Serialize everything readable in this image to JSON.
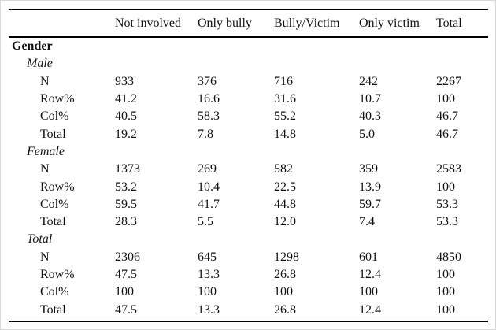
{
  "table": {
    "section_label": "Gender",
    "columns": {
      "c1": "Not involved",
      "c2": "Only bully",
      "c3": "Bully/Victim",
      "c4": "Only victim",
      "c5": "Total"
    },
    "groups": [
      {
        "label": "Male",
        "rows": [
          {
            "label": "N",
            "values": [
              "933",
              "376",
              "716",
              "242",
              "2267"
            ]
          },
          {
            "label": "Row%",
            "values": [
              "41.2",
              "16.6",
              "31.6",
              "10.7",
              "100"
            ]
          },
          {
            "label": "Col%",
            "values": [
              "40.5",
              "58.3",
              "55.2",
              "40.3",
              "46.7"
            ]
          },
          {
            "label": "Total",
            "values": [
              "19.2",
              "7.8",
              "14.8",
              "5.0",
              "46.7"
            ]
          }
        ]
      },
      {
        "label": "Female",
        "rows": [
          {
            "label": "N",
            "values": [
              "1373",
              "269",
              "582",
              "359",
              "2583"
            ]
          },
          {
            "label": "Row%",
            "values": [
              "53.2",
              "10.4",
              "22.5",
              "13.9",
              "100"
            ]
          },
          {
            "label": "Col%",
            "values": [
              "59.5",
              "41.7",
              "44.8",
              "59.7",
              "53.3"
            ]
          },
          {
            "label": "Total",
            "values": [
              "28.3",
              "5.5",
              "12.0",
              "7.4",
              "53.3"
            ]
          }
        ]
      },
      {
        "label": "Total",
        "rows": [
          {
            "label": "N",
            "values": [
              "2306",
              "645",
              "1298",
              "601",
              "4850"
            ]
          },
          {
            "label": "Row%",
            "values": [
              "47.5",
              "13.3",
              "26.8",
              "12.4",
              "100"
            ]
          },
          {
            "label": "Col%",
            "values": [
              "100",
              "100",
              "100",
              "100",
              "100"
            ]
          },
          {
            "label": "Total",
            "values": [
              "47.5",
              "13.3",
              "26.8",
              "12.4",
              "100"
            ]
          }
        ]
      }
    ]
  },
  "chart_data": {
    "type": "table",
    "title": "",
    "columns": [
      "",
      "Not involved",
      "Only bully",
      "Bully/Victim",
      "Only victim",
      "Total"
    ],
    "rows": [
      [
        "Gender",
        "",
        "",
        "",
        "",
        ""
      ],
      [
        "Male",
        "",
        "",
        "",
        "",
        ""
      ],
      [
        "N",
        "933",
        "376",
        "716",
        "242",
        "2267"
      ],
      [
        "Row%",
        "41.2",
        "16.6",
        "31.6",
        "10.7",
        "100"
      ],
      [
        "Col%",
        "40.5",
        "58.3",
        "55.2",
        "40.3",
        "46.7"
      ],
      [
        "Total",
        "19.2",
        "7.8",
        "14.8",
        "5.0",
        "46.7"
      ],
      [
        "Female",
        "",
        "",
        "",
        "",
        ""
      ],
      [
        "N",
        "1373",
        "269",
        "582",
        "359",
        "2583"
      ],
      [
        "Row%",
        "53.2",
        "10.4",
        "22.5",
        "13.9",
        "100"
      ],
      [
        "Col%",
        "59.5",
        "41.7",
        "44.8",
        "59.7",
        "53.3"
      ],
      [
        "Total",
        "28.3",
        "5.5",
        "12.0",
        "7.4",
        "53.3"
      ],
      [
        "Total",
        "",
        "",
        "",
        "",
        ""
      ],
      [
        "N",
        "2306",
        "645",
        "1298",
        "601",
        "4850"
      ],
      [
        "Row%",
        "47.5",
        "13.3",
        "26.8",
        "12.4",
        "100"
      ],
      [
        "Col%",
        "100",
        "100",
        "100",
        "100",
        "100"
      ],
      [
        "Total",
        "47.5",
        "13.3",
        "26.8",
        "12.4",
        "100"
      ]
    ]
  }
}
